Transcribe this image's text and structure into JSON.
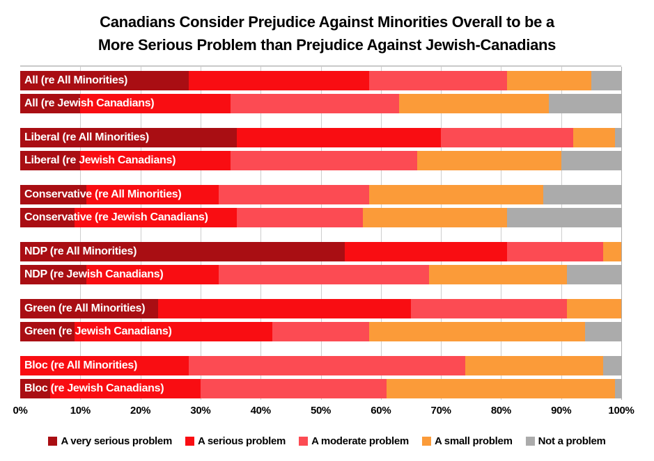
{
  "title": {
    "line1": "Canadians Consider Prejudice Against Minorities Overall to be a",
    "line2": "More Serious Problem than Prejudice Against Jewish-Canadians"
  },
  "colors": {
    "gridline": "#CDCDCD",
    "gridline_end": "#ACACAC",
    "plot_border": "#C9C9C9",
    "bar_label_text": "#FFFFFF"
  },
  "chart_data": {
    "type": "bar",
    "orientation": "horizontal",
    "stacked": true,
    "unit": "percent",
    "xlim": [
      0,
      100
    ],
    "grid": true,
    "legend_position": "bottom",
    "x_ticks": [
      "0%",
      "10%",
      "20%",
      "30%",
      "40%",
      "50%",
      "60%",
      "70%",
      "80%",
      "90%",
      "100%"
    ],
    "series": [
      {
        "name": "A very serious problem",
        "color": "#A90E13"
      },
      {
        "name": "A serious problem",
        "color": "#F90D12"
      },
      {
        "name": "A moderate problem",
        "color": "#FC4B53"
      },
      {
        "name": "A small problem",
        "color": "#FB9B39"
      },
      {
        "name": "Not a problem",
        "color": "#ABABAB"
      }
    ],
    "groups": [
      {
        "rows": [
          {
            "label": "All (re All Minorities)",
            "values": [
              28,
              30,
              23,
              14,
              5
            ]
          },
          {
            "label": "All (re Jewish Canadians)",
            "values": [
              10,
              25,
              28,
              25,
              12
            ]
          }
        ]
      },
      {
        "rows": [
          {
            "label": "Liberal (re All Minorities)",
            "values": [
              36,
              34,
              22,
              7,
              1
            ]
          },
          {
            "label": "Liberal (re Jewish Canadians)",
            "values": [
              10,
              25,
              31,
              24,
              10
            ]
          }
        ]
      },
      {
        "rows": [
          {
            "label": "Conservative (re All Minorities)",
            "values": [
              11,
              22,
              25,
              29,
              13
            ]
          },
          {
            "label": "Conservative (re Jewish Canadians)",
            "values": [
              9,
              27,
              21,
              24,
              19
            ]
          }
        ]
      },
      {
        "rows": [
          {
            "label": "NDP (re All Minorities)",
            "values": [
              54,
              27,
              16,
              3,
              0
            ]
          },
          {
            "label": "NDP (re Jewish Canadians)",
            "values": [
              11,
              22,
              35,
              23,
              9
            ]
          }
        ]
      },
      {
        "rows": [
          {
            "label": "Green (re All Minorities)",
            "values": [
              23,
              42,
              26,
              9,
              0
            ]
          },
          {
            "label": "Green (re Jewish Canadians)",
            "values": [
              9,
              33,
              16,
              36,
              6
            ]
          }
        ]
      },
      {
        "rows": [
          {
            "label": "Bloc (re All Minorities)",
            "values": [
              0,
              28,
              46,
              23,
              3
            ]
          },
          {
            "label": "Bloc (re Jewish Canadians)",
            "values": [
              5,
              25,
              31,
              38,
              1
            ]
          }
        ]
      }
    ]
  }
}
